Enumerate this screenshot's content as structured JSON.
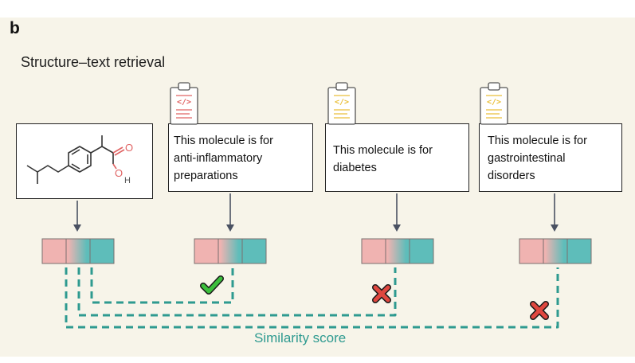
{
  "panel_label": "b",
  "title": "Structure–text retrieval",
  "molecule": {
    "atom_o_top": "O",
    "atom_o_bottom": "O",
    "atom_h": "H"
  },
  "descriptions": [
    {
      "text_lines": [
        "This molecule is for",
        "anti-inflammatory",
        "preparations"
      ],
      "match": "check"
    },
    {
      "text_lines": [
        "This molecule is for",
        "diabetes"
      ],
      "match": "cross"
    },
    {
      "text_lines": [
        "This molecule is for",
        "gastrointestinal",
        "disorders"
      ],
      "match": "cross"
    }
  ],
  "document_icon_glyph": "</>",
  "similarity_label": "Similarity score",
  "colors": {
    "pink": "#f0b3b1",
    "teal": "#5ebdba",
    "dashed_line": "#2e9a90",
    "arrow": "#4a5162",
    "check": "#3cbf3c",
    "cross": "#e0473f",
    "clipboard_red": "#e06464",
    "clipboard_yellow": "#e9bf3a"
  }
}
